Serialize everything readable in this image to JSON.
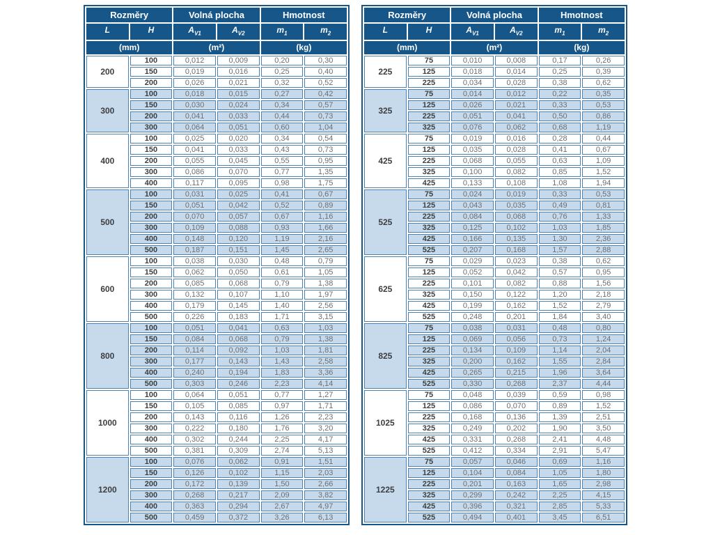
{
  "colors": {
    "header_blue": "#175689",
    "row_blue": "#c7daeb",
    "border_blue": "#4c80af",
    "text_gray": "#6d6e71",
    "text_dark": "#3d3e40"
  },
  "header": {
    "groups": [
      "Rozměry",
      "Volná plocha",
      "Hmotnost"
    ],
    "columns": [
      {
        "base": "L",
        "sub": ""
      },
      {
        "base": "H",
        "sub": ""
      },
      {
        "base": "A",
        "sub": "V1"
      },
      {
        "base": "A",
        "sub": "V2"
      },
      {
        "base": "m",
        "sub": "1"
      },
      {
        "base": "m",
        "sub": "2"
      }
    ],
    "units": [
      "(mm)",
      "(m²)",
      "(kg)"
    ]
  },
  "tables": [
    {
      "groups": [
        {
          "l": "200",
          "rows": [
            [
              "100",
              "0,012",
              "0,009",
              "0,20",
              "0,30"
            ],
            [
              "150",
              "0,019",
              "0,016",
              "0,25",
              "0,40"
            ],
            [
              "200",
              "0,026",
              "0,021",
              "0,32",
              "0,52"
            ]
          ]
        },
        {
          "l": "300",
          "rows": [
            [
              "100",
              "0,018",
              "0,015",
              "0,27",
              "0,42"
            ],
            [
              "150",
              "0,030",
              "0,024",
              "0,34",
              "0,57"
            ],
            [
              "200",
              "0,041",
              "0,033",
              "0,44",
              "0,73"
            ],
            [
              "300",
              "0,064",
              "0,051",
              "0,60",
              "1,04"
            ]
          ]
        },
        {
          "l": "400",
          "rows": [
            [
              "100",
              "0,025",
              "0,020",
              "0,34",
              "0,54"
            ],
            [
              "150",
              "0,041",
              "0,033",
              "0,43",
              "0,73"
            ],
            [
              "200",
              "0,055",
              "0,045",
              "0,55",
              "0,95"
            ],
            [
              "300",
              "0,086",
              "0,070",
              "0,77",
              "1,35"
            ],
            [
              "400",
              "0,117",
              "0,095",
              "0,98",
              "1,75"
            ]
          ]
        },
        {
          "l": "500",
          "rows": [
            [
              "100",
              "0,031",
              "0,025",
              "0,41",
              "0,67"
            ],
            [
              "150",
              "0,051",
              "0,042",
              "0,52",
              "0,89"
            ],
            [
              "200",
              "0,070",
              "0,057",
              "0,67",
              "1,16"
            ],
            [
              "300",
              "0,109",
              "0,088",
              "0,93",
              "1,66"
            ],
            [
              "400",
              "0,148",
              "0,120",
              "1,19",
              "2,16"
            ],
            [
              "500",
              "0,187",
              "0,151",
              "1,45",
              "2,65"
            ]
          ]
        },
        {
          "l": "600",
          "rows": [
            [
              "100",
              "0,038",
              "0,030",
              "0,48",
              "0,79"
            ],
            [
              "150",
              "0,062",
              "0,050",
              "0,61",
              "1,05"
            ],
            [
              "200",
              "0,085",
              "0,068",
              "0,79",
              "1,38"
            ],
            [
              "300",
              "0,132",
              "0,107",
              "1,10",
              "1,97"
            ],
            [
              "400",
              "0,179",
              "0,145",
              "1,40",
              "2,56"
            ],
            [
              "500",
              "0,226",
              "0,183",
              "1,71",
              "3,15"
            ]
          ]
        },
        {
          "l": "800",
          "rows": [
            [
              "100",
              "0,051",
              "0,041",
              "0,63",
              "1,03"
            ],
            [
              "150",
              "0,084",
              "0,068",
              "0,79",
              "1,38"
            ],
            [
              "200",
              "0,114",
              "0,092",
              "1,03",
              "1,81"
            ],
            [
              "300",
              "0,177",
              "0,143",
              "1,43",
              "2,58"
            ],
            [
              "400",
              "0,240",
              "0,194",
              "1,83",
              "3,36"
            ],
            [
              "500",
              "0,303",
              "0,246",
              "2,23",
              "4,14"
            ]
          ]
        },
        {
          "l": "1000",
          "rows": [
            [
              "100",
              "0,064",
              "0,051",
              "0,77",
              "1,27"
            ],
            [
              "150",
              "0,105",
              "0,085",
              "0,97",
              "1,71"
            ],
            [
              "200",
              "0,143",
              "0,116",
              "1,26",
              "2,23"
            ],
            [
              "300",
              "0,222",
              "0,180",
              "1,76",
              "3,20"
            ],
            [
              "400",
              "0,302",
              "0,244",
              "2,25",
              "4,17"
            ],
            [
              "500",
              "0,381",
              "0,309",
              "2,74",
              "5,13"
            ]
          ]
        },
        {
          "l": "1200",
          "rows": [
            [
              "100",
              "0,076",
              "0,062",
              "0,91",
              "1,51"
            ],
            [
              "150",
              "0,126",
              "0,102",
              "1,15",
              "2,03"
            ],
            [
              "200",
              "0,172",
              "0,139",
              "1,50",
              "2,66"
            ],
            [
              "300",
              "0,268",
              "0,217",
              "2,09",
              "3,82"
            ],
            [
              "400",
              "0,363",
              "0,294",
              "2,67",
              "4,97"
            ],
            [
              "500",
              "0,459",
              "0,372",
              "3,26",
              "6,13"
            ]
          ]
        }
      ]
    },
    {
      "groups": [
        {
          "l": "225",
          "rows": [
            [
              "75",
              "0,010",
              "0,008",
              "0,17",
              "0,26"
            ],
            [
              "125",
              "0,018",
              "0,014",
              "0,25",
              "0,39"
            ],
            [
              "225",
              "0,034",
              "0,028",
              "0,38",
              "0,62"
            ]
          ]
        },
        {
          "l": "325",
          "rows": [
            [
              "75",
              "0,014",
              "0,012",
              "0,22",
              "0,35"
            ],
            [
              "125",
              "0,026",
              "0,021",
              "0,33",
              "0,53"
            ],
            [
              "225",
              "0,051",
              "0,041",
              "0,50",
              "0,86"
            ],
            [
              "325",
              "0,076",
              "0,062",
              "0,68",
              "1,19"
            ]
          ]
        },
        {
          "l": "425",
          "rows": [
            [
              "75",
              "0,019",
              "0,016",
              "0,28",
              "0,44"
            ],
            [
              "125",
              "0,035",
              "0,028",
              "0,41",
              "0,67"
            ],
            [
              "225",
              "0,068",
              "0,055",
              "0,63",
              "1,09"
            ],
            [
              "325",
              "0,100",
              "0,082",
              "0,85",
              "1,52"
            ],
            [
              "425",
              "0,133",
              "0,108",
              "1,08",
              "1,94"
            ]
          ]
        },
        {
          "l": "525",
          "rows": [
            [
              "75",
              "0,024",
              "0,019",
              "0,33",
              "0,53"
            ],
            [
              "125",
              "0,043",
              "0,035",
              "0,49",
              "0,81"
            ],
            [
              "225",
              "0,084",
              "0,068",
              "0,76",
              "1,33"
            ],
            [
              "325",
              "0,125",
              "0,102",
              "1,03",
              "1,85"
            ],
            [
              "425",
              "0,166",
              "0,135",
              "1,30",
              "2,36"
            ],
            [
              "525",
              "0,207",
              "0,168",
              "1,57",
              "2,88"
            ]
          ]
        },
        {
          "l": "625",
          "rows": [
            [
              "75",
              "0,029",
              "0,023",
              "0,38",
              "0,62"
            ],
            [
              "125",
              "0,052",
              "0,042",
              "0,57",
              "0,95"
            ],
            [
              "225",
              "0,101",
              "0,082",
              "0,88",
              "1,56"
            ],
            [
              "325",
              "0,150",
              "0,122",
              "1,20",
              "2,18"
            ],
            [
              "425",
              "0,199",
              "0,162",
              "1,52",
              "2,79"
            ],
            [
              "525",
              "0,248",
              "0,201",
              "1,84",
              "3,40"
            ]
          ]
        },
        {
          "l": "825",
          "rows": [
            [
              "75",
              "0,038",
              "0,031",
              "0,48",
              "0,80"
            ],
            [
              "125",
              "0,069",
              "0,056",
              "0,73",
              "1,24"
            ],
            [
              "225",
              "0,134",
              "0,109",
              "1,14",
              "2,04"
            ],
            [
              "325",
              "0,200",
              "0,162",
              "1,55",
              "2,84"
            ],
            [
              "425",
              "0,265",
              "0,215",
              "1,96",
              "3,64"
            ],
            [
              "525",
              "0,330",
              "0,268",
              "2,37",
              "4,44"
            ]
          ]
        },
        {
          "l": "1025",
          "rows": [
            [
              "75",
              "0,048",
              "0,039",
              "0,59",
              "0,98"
            ],
            [
              "125",
              "0,086",
              "0,070",
              "0,89",
              "1,52"
            ],
            [
              "225",
              "0,168",
              "0,136",
              "1,39",
              "2,51"
            ],
            [
              "325",
              "0,249",
              "0,202",
              "1,90",
              "3,50"
            ],
            [
              "425",
              "0,331",
              "0,268",
              "2,41",
              "4,48"
            ],
            [
              "525",
              "0,412",
              "0,334",
              "2,91",
              "5,47"
            ]
          ]
        },
        {
          "l": "1225",
          "rows": [
            [
              "75",
              "0,057",
              "0,046",
              "0,69",
              "1,16"
            ],
            [
              "125",
              "0,104",
              "0,084",
              "1,05",
              "1,80"
            ],
            [
              "225",
              "0,201",
              "0,163",
              "1,65",
              "2,98"
            ],
            [
              "325",
              "0,299",
              "0,242",
              "2,25",
              "4,15"
            ],
            [
              "425",
              "0,396",
              "0,321",
              "2,85",
              "5,33"
            ],
            [
              "525",
              "0,494",
              "0,401",
              "3,45",
              "6,51"
            ]
          ]
        }
      ]
    }
  ]
}
